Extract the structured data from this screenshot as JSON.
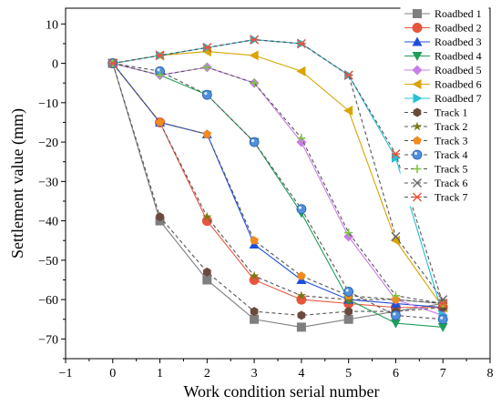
{
  "chart_data": {
    "type": "line",
    "xlabel": "Work condition serial number",
    "ylabel": "Settlement value (mm)",
    "xlim": [
      -1,
      8
    ],
    "ylim": [
      -75,
      14
    ],
    "xticks": [
      -1,
      0,
      1,
      2,
      3,
      4,
      5,
      6,
      7,
      8
    ],
    "yticks": [
      10,
      0,
      -10,
      -20,
      -30,
      -40,
      -50,
      -60,
      -70
    ],
    "tick_labels_x": [
      "−1",
      "0",
      "1",
      "2",
      "3",
      "4",
      "5",
      "6",
      "7",
      "8"
    ],
    "tick_labels_y": [
      "10",
      "0",
      "−10",
      "−20",
      "−30",
      "−40",
      "−50",
      "−60",
      "−70"
    ],
    "grid": false,
    "legend_position": "top-right",
    "x": [
      0,
      1,
      2,
      3,
      4,
      5,
      6,
      7
    ],
    "series": [
      {
        "name": "Roadbed 1",
        "values": [
          0,
          -40,
          -55,
          -65,
          -67,
          -65,
          -63,
          -61
        ],
        "color": "#7f7f7f",
        "marker": "square",
        "dash": false
      },
      {
        "name": "Roadbed 2",
        "values": [
          0,
          -15,
          -40,
          -55,
          -60,
          -61,
          -62,
          -62
        ],
        "color": "#e8553e",
        "marker": "circle",
        "dash": false
      },
      {
        "name": "Roadbed 3",
        "values": [
          0,
          -15,
          -18,
          -46,
          -55,
          -60,
          -61,
          -62
        ],
        "color": "#1f4fd8",
        "marker": "triangle-up",
        "dash": false
      },
      {
        "name": "Roadbed 4",
        "values": [
          0,
          -3,
          -8,
          -20,
          -38,
          -60,
          -66,
          -67
        ],
        "color": "#1f9e5a",
        "marker": "triangle-down",
        "dash": false
      },
      {
        "name": "Roadbed 5",
        "values": [
          0,
          -3,
          -1,
          -5,
          -20,
          -44,
          -60,
          -64
        ],
        "color": "#c87de8",
        "marker": "diamond",
        "dash": false
      },
      {
        "name": "Roadbed 6",
        "values": [
          0,
          2,
          3,
          2,
          -2,
          -12,
          -45,
          -62
        ],
        "color": "#d9a400",
        "marker": "triangle-left",
        "dash": false
      },
      {
        "name": "Roadbed 7",
        "values": [
          0,
          2,
          4,
          6,
          5,
          -3,
          -24,
          -64
        ],
        "color": "#27c0d6",
        "marker": "triangle-right",
        "dash": false
      },
      {
        "name": "Track 1",
        "values": [
          0,
          -39,
          -53,
          -63,
          -64,
          -63,
          -63,
          -62
        ],
        "color": "#6b4a3e",
        "marker": "hexagon",
        "dash": true
      },
      {
        "name": "Track 2",
        "values": [
          0,
          -15,
          -39,
          -54,
          -59,
          -60,
          -60,
          -61
        ],
        "color": "#7a7a10",
        "marker": "star",
        "dash": true
      },
      {
        "name": "Track 3",
        "values": [
          0,
          -15,
          -18,
          -45,
          -54,
          -59,
          -60,
          -61
        ],
        "color": "#f28a20",
        "marker": "pentagon",
        "dash": true
      },
      {
        "name": "Track 4",
        "values": [
          0,
          -2,
          -8,
          -20,
          -37,
          -58,
          -64,
          -65
        ],
        "color": "#4f8fdc",
        "marker": "sphere",
        "dash": true
      },
      {
        "name": "Track 5",
        "values": [
          0,
          -3,
          -1,
          -5,
          -19,
          -43,
          -59,
          -61
        ],
        "color": "#7cc640",
        "marker": "plus",
        "dash": true
      },
      {
        "name": "Track 6",
        "values": [
          0,
          2,
          4,
          6,
          5,
          -3,
          -44,
          -60
        ],
        "color": "#666666",
        "marker": "cross",
        "dash": true
      },
      {
        "name": "Track 7",
        "values": [
          0,
          2,
          4,
          6,
          5,
          -3,
          -23,
          -61
        ],
        "color": "#e8553e",
        "marker": "asterisk",
        "dash": true
      }
    ]
  }
}
